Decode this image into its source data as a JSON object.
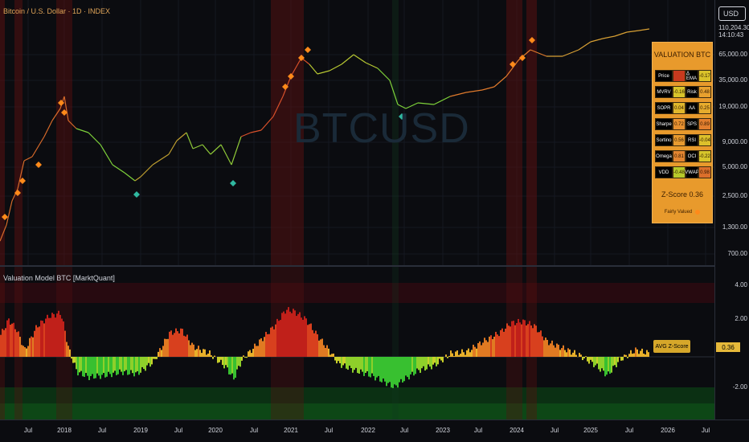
{
  "chart": {
    "title": "Bitcoin / U.S. Dollar · 1D · INDEX",
    "symbol_watermark": "BTCUSD",
    "currency": "USD",
    "last_price_lines": [
      "110,204.30",
      "14:10:43"
    ]
  },
  "price_axis": [
    "65,000.00",
    "35,000.00",
    "19,000.00",
    "9,000.00",
    "5,000.00",
    "2,500.00",
    "1,300.00",
    "700.00"
  ],
  "oscillator": {
    "title": "Valuation Model BTC [MarktQuant]",
    "axis": [
      "4.00",
      "2.00",
      "-2.00"
    ],
    "avg_label": "AVG Z-Score",
    "avg_value": "0.36"
  },
  "time_axis": [
    "Jul",
    "2018",
    "Jul",
    "2019",
    "Jul",
    "2020",
    "Jul",
    "2021",
    "Jul",
    "2022",
    "Jul",
    "2023",
    "Jul",
    "2024",
    "Jul",
    "2025",
    "Jul",
    "2026",
    "Jul"
  ],
  "valuation": {
    "title": "VALUATION BTC",
    "rows": [
      {
        "l1": "Price",
        "v1": "",
        "c1": "#c83a1e",
        "l2": "Δ EMA",
        "v2": "-0.17",
        "c2": "#d9c22a"
      },
      {
        "l1": "MVRV",
        "v1": "-0.16",
        "c1": "#d8c42a",
        "l2": "Risk",
        "v2": "0.48",
        "c2": "#e7a02e"
      },
      {
        "l1": "SOPR",
        "v1": "0.04",
        "c1": "#e0b72c",
        "l2": "AA",
        "v2": "0.25",
        "c2": "#e6ab2d"
      },
      {
        "l1": "Sharpe",
        "v1": "0.72",
        "c1": "#e69030",
        "l2": "SPS",
        "v2": "0.89",
        "c2": "#e27e2e"
      },
      {
        "l1": "Sortino",
        "v1": "0.56",
        "c1": "#e79a2f",
        "l2": "RSI",
        "v2": "-0.04",
        "c2": "#dcc02b"
      },
      {
        "l1": "Omega",
        "v1": "0.81",
        "c1": "#e28530",
        "l2": "OCI",
        "v2": "-0.22",
        "c2": "#d6c52b"
      },
      {
        "l1": "VDD",
        "v1": "-0.48",
        "c1": "#b7c92a",
        "l2": "VWAP",
        "v2": "0.98",
        "c2": "#db6f2b"
      }
    ],
    "zscore_label": "Z-Score",
    "zscore_value": "0.36",
    "status": "Fairly Valued"
  }
}
